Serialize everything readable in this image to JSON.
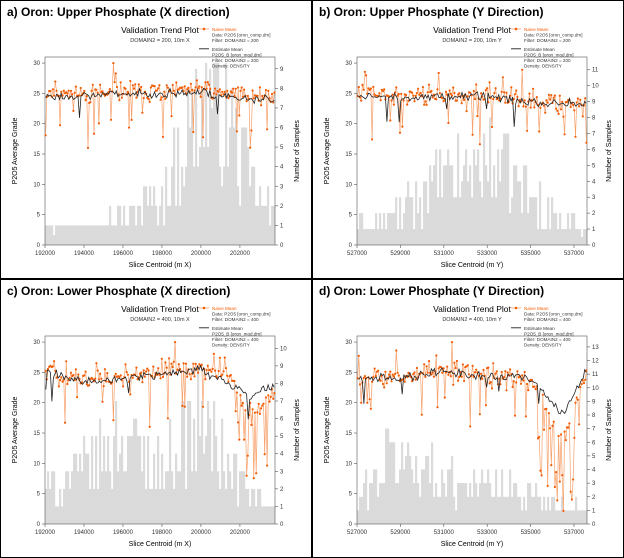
{
  "chart_data": [
    {
      "type": "bar+line+scatter",
      "panel_title": "a) Oron: Upper Phosphate (X direction)",
      "title": "Validation Trend Plot",
      "subtitle": "DOMAIN2 = 200, 10m X",
      "xlabel": "Slice Centroid (m X)",
      "ylabel": "P2O5 Average Grade",
      "y2label": "Number of Samples",
      "xlim": [
        192000,
        203800
      ],
      "xticks": [
        "192000",
        "194000",
        "196000",
        "198000",
        "200000",
        "202000"
      ],
      "xtick_values": [
        192000,
        194000,
        196000,
        198000,
        200000,
        202000
      ],
      "ylim": [
        0,
        31
      ],
      "yticks": [
        0,
        5,
        10,
        15,
        20,
        25,
        30
      ],
      "y2lim": [
        0,
        9.6
      ],
      "y2ticks": [
        0,
        1,
        2,
        3,
        4,
        5,
        6,
        7,
        8,
        9
      ],
      "legend": [
        {
          "name": "Naive Mean",
          "lines": [
            "Naive Mean",
            "Data: P2O5 [oron_comp.dm]",
            "Filter: DOMAIN2 = 200"
          ]
        },
        {
          "name": "Estimate Mean",
          "lines": [
            "Estimate Mean",
            "P2O5_B [oron_mod.dm]",
            "Filter: DOMAIN2 = 200",
            "Density: DENSITY"
          ]
        }
      ],
      "series": [
        {
          "name": "Naive Mean",
          "profile": [
            [
              192000,
              25.4
            ],
            [
              194000,
              24.8
            ],
            [
              196000,
              25.6
            ],
            [
              198000,
              25.2
            ],
            [
              200000,
              25.8
            ],
            [
              202000,
              24.6
            ],
            [
              203800,
              24.4
            ]
          ]
        },
        {
          "name": "Estimate Mean",
          "profile": [
            [
              192000,
              24.6
            ],
            [
              194000,
              24.6
            ],
            [
              196000,
              25.0
            ],
            [
              198000,
              25.0
            ],
            [
              200000,
              25.2
            ],
            [
              202000,
              24.2
            ],
            [
              203800,
              24.2
            ]
          ]
        },
        {
          "name": "Number of Samples",
          "profile": [
            [
              192000,
              1
            ],
            [
              194000,
              1
            ],
            [
              196000,
              1.5
            ],
            [
              198000,
              2.5
            ],
            [
              199500,
              6
            ],
            [
              200500,
              8
            ],
            [
              201500,
              6
            ],
            [
              203000,
              2
            ],
            [
              203800,
              1.5
            ]
          ]
        }
      ]
    },
    {
      "type": "bar+line+scatter",
      "panel_title": "b) Oron: Upper Phosphate (Y Direction)",
      "title": "Validation Trend Plot",
      "subtitle": "DOMAIN2 = 200, 10m Y",
      "xlabel": "Slice Centroid (m Y)",
      "ylabel": "P2O5 Average Grade",
      "y2label": "Number of Samples",
      "xlim": [
        527000,
        537600
      ],
      "xticks": [
        "527000",
        "529000",
        "531000",
        "533000",
        "535000",
        "537000"
      ],
      "xtick_values": [
        527000,
        529000,
        531000,
        533000,
        535000,
        537000
      ],
      "ylim": [
        0,
        31
      ],
      "yticks": [
        0,
        5,
        10,
        15,
        20,
        25,
        30
      ],
      "y2lim": [
        0,
        11.8
      ],
      "y2ticks": [
        0,
        1,
        2,
        3,
        4,
        5,
        6,
        7,
        8,
        9,
        10,
        11
      ],
      "legend": [
        {
          "name": "Naive Mean",
          "lines": [
            "Naive Mean",
            "Data: P2O5 [oron_comp.dm]",
            "Filter: DOMAIN2 = 200"
          ]
        },
        {
          "name": "Estimate Mean",
          "lines": [
            "Estimate Mean",
            "P2O5_B [oron_mod.dm]",
            "Filter: DOMAIN2 = 200",
            "Density: DENSITY"
          ]
        }
      ],
      "series": [
        {
          "name": "Naive Mean",
          "profile": [
            [
              527000,
              25.2
            ],
            [
              529000,
              24.4
            ],
            [
              531000,
              24.8
            ],
            [
              533000,
              25.0
            ],
            [
              535000,
              23.6
            ],
            [
              537000,
              23.2
            ],
            [
              537600,
              23.0
            ]
          ]
        },
        {
          "name": "Estimate Mean",
          "profile": [
            [
              527000,
              25.0
            ],
            [
              529000,
              24.2
            ],
            [
              531000,
              24.4
            ],
            [
              533000,
              24.6
            ],
            [
              535000,
              23.6
            ],
            [
              537000,
              23.4
            ],
            [
              537600,
              23.4
            ]
          ]
        },
        {
          "name": "Number of Samples",
          "profile": [
            [
              527000,
              1
            ],
            [
              529000,
              2
            ],
            [
              531000,
              4
            ],
            [
              532500,
              5
            ],
            [
              533500,
              5
            ],
            [
              535000,
              3
            ],
            [
              537000,
              1
            ],
            [
              537600,
              1
            ]
          ]
        }
      ]
    },
    {
      "type": "bar+line+scatter",
      "panel_title": "c) Oron: Lower Phosphate (X direction)",
      "title": "Validation Trend Plot",
      "subtitle": "DOMAIN2 = 400, 10m X",
      "xlabel": "Slice Centroid (m X)",
      "ylabel": "P2O5 Average Grade",
      "y2label": "Number of Samples",
      "xlim": [
        192000,
        203800
      ],
      "xticks": [
        "192000",
        "194000",
        "196000",
        "198000",
        "200000",
        "202000"
      ],
      "xtick_values": [
        192000,
        194000,
        196000,
        198000,
        200000,
        202000
      ],
      "ylim": [
        0,
        31
      ],
      "yticks": [
        0,
        5,
        10,
        15,
        20,
        25,
        30
      ],
      "y2lim": [
        0,
        10.7
      ],
      "y2ticks": [
        0,
        1,
        2,
        3,
        4,
        5,
        6,
        7,
        8,
        9,
        10
      ],
      "legend": [
        {
          "name": "Naive Mean",
          "lines": [
            "Naive Mean",
            "Data: P2O5 [oron_comp.dm]",
            "Filter: DOMAIN2 = 400"
          ]
        },
        {
          "name": "Estimate Mean",
          "lines": [
            "Estimate Mean",
            "P2O5_B [oron_mod.dm]",
            "Filter: DOMAIN2 = 400",
            "Density: DENSITY"
          ]
        }
      ],
      "series": [
        {
          "name": "Naive Mean",
          "profile": [
            [
              192000,
              25.6
            ],
            [
              194000,
              23.6
            ],
            [
              196000,
              24.2
            ],
            [
              198000,
              25.0
            ],
            [
              200000,
              25.8
            ],
            [
              201500,
              24.0
            ],
            [
              202500,
              18.0
            ],
            [
              203800,
              22.0
            ]
          ]
        },
        {
          "name": "Estimate Mean",
          "profile": [
            [
              192000,
              25.2
            ],
            [
              194000,
              23.4
            ],
            [
              196000,
              24.0
            ],
            [
              198000,
              24.6
            ],
            [
              200000,
              25.4
            ],
            [
              201500,
              23.0
            ],
            [
              202500,
              21.0
            ],
            [
              203800,
              23.0
            ]
          ]
        },
        {
          "name": "Number of Samples",
          "profile": [
            [
              192000,
              2
            ],
            [
              194000,
              3
            ],
            [
              196000,
              5
            ],
            [
              198000,
              3
            ],
            [
              200000,
              6
            ],
            [
              201500,
              3
            ],
            [
              203000,
              1
            ],
            [
              203800,
              1
            ]
          ]
        }
      ]
    },
    {
      "type": "bar+line+scatter",
      "panel_title": "d) Oron: Lower Phosphate (Y Direction)",
      "title": "Validation Trend Plot",
      "subtitle": "DOMAIN2 = 400, 10m Y",
      "xlabel": "Slice Centroid (m Y)",
      "ylabel": "P2O5 Average Grade",
      "y2label": "Number of Samples",
      "xlim": [
        527000,
        537600
      ],
      "xticks": [
        "527000",
        "529000",
        "531000",
        "533000",
        "535000",
        "537000"
      ],
      "xtick_values": [
        527000,
        529000,
        531000,
        533000,
        535000,
        537000
      ],
      "ylim": [
        0,
        31
      ],
      "yticks": [
        0,
        5,
        10,
        15,
        20,
        25,
        30
      ],
      "y2lim": [
        0,
        13.8
      ],
      "y2ticks": [
        0,
        1,
        2,
        3,
        4,
        5,
        6,
        7,
        8,
        9,
        10,
        11,
        12,
        13
      ],
      "legend": [
        {
          "name": "Naive Mean",
          "lines": [
            "Naive Mean",
            "Data: P2O5 [oron_comp.dm]",
            "Filter: DOMAIN2 = 400"
          ]
        },
        {
          "name": "Estimate Mean",
          "lines": [
            "Estimate Mean",
            "P2O5_B [oron_mod.dm]",
            "Filter: DOMAIN2 = 400",
            "Density: DENSITY"
          ]
        }
      ],
      "series": [
        {
          "name": "Naive Mean",
          "profile": [
            [
              527000,
              24.0
            ],
            [
              529000,
              24.0
            ],
            [
              531000,
              25.6
            ],
            [
              533000,
              24.6
            ],
            [
              535000,
              23.8
            ],
            [
              536500,
              14.0
            ],
            [
              537600,
              25.0
            ]
          ]
        },
        {
          "name": "Estimate Mean",
          "profile": [
            [
              527000,
              24.2
            ],
            [
              529000,
              24.0
            ],
            [
              531000,
              25.2
            ],
            [
              533000,
              24.4
            ],
            [
              535000,
              24.0
            ],
            [
              536500,
              18.0
            ],
            [
              537600,
              25.6
            ]
          ]
        },
        {
          "name": "Number of Samples",
          "profile": [
            [
              527000,
              1.5
            ],
            [
              528500,
              5
            ],
            [
              530000,
              4
            ],
            [
              531500,
              3
            ],
            [
              533000,
              3
            ],
            [
              535000,
              2
            ],
            [
              537000,
              1
            ],
            [
              537600,
              1
            ]
          ]
        }
      ]
    }
  ],
  "colors": {
    "naive": "#f25c05",
    "naive_line": "#f7a06a",
    "estimate": "#222222",
    "bars": "#cfcfcf",
    "axis": "#555555"
  }
}
